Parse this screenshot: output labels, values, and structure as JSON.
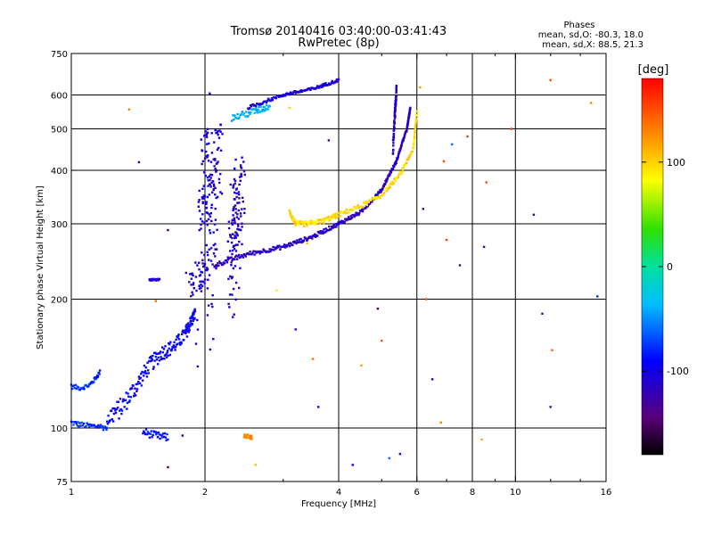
{
  "chart_data": {
    "type": "scatter",
    "title": "Tromsø 20140416 03:40:00-03:41:43",
    "subtitle": "RwPretec (8p)",
    "xlabel": "Frequency [MHz]",
    "ylabel": "Stationary phase Virtual Height [km]",
    "x_scale": "log",
    "y_scale": "log",
    "xlim": [
      1,
      16
    ],
    "ylim": [
      75,
      750
    ],
    "x_ticks": [
      1,
      2,
      4,
      6,
      8,
      10,
      16
    ],
    "x_tick_labels": [
      "1",
      "2",
      "4",
      "6",
      "8",
      "10",
      "16"
    ],
    "x_gridlines": [
      2,
      4,
      6,
      8,
      10
    ],
    "y_ticks": [
      75,
      100,
      200,
      300,
      400,
      500,
      600,
      750
    ],
    "y_tick_labels": [
      "75",
      "100",
      "200",
      "300",
      "400",
      "500",
      "600",
      "750"
    ],
    "y_gridlines": [
      100,
      200,
      300,
      400,
      500,
      600
    ],
    "grid": true,
    "stats": {
      "heading": "Phases",
      "line_o": "mean, sd,O: -80.3, 18.0",
      "line_x": "mean, sd,X:  88.5, 21.3"
    },
    "colorbar": {
      "unit": "[deg]",
      "range": [
        -180,
        180
      ],
      "ticks": [
        100,
        0,
        -100
      ],
      "tick_labels": [
        "100",
        "0",
        "-100"
      ]
    },
    "traces": [
      {
        "f": [
          1.0,
          1.04,
          1.1,
          1.15,
          1.2
        ],
        "h": [
          103,
          102,
          101,
          101,
          100
        ],
        "phase": -75,
        "spread": 1.5
      },
      {
        "f": [
          1.0,
          1.05,
          1.1,
          1.13,
          1.16
        ],
        "h": [
          125,
          124,
          126,
          130,
          135
        ],
        "phase": -80,
        "spread": 1.5
      },
      {
        "f": [
          1.2,
          1.3,
          1.4,
          1.5,
          1.6,
          1.7,
          1.8,
          1.85,
          1.9
        ],
        "h": [
          105,
          112,
          125,
          140,
          150,
          155,
          165,
          175,
          185
        ],
        "phase": -95,
        "spread": 6
      },
      {
        "f": [
          1.45,
          1.55,
          1.65
        ],
        "h": [
          98,
          96,
          95
        ],
        "phase": -90,
        "spread": 2
      },
      {
        "f": [
          1.5,
          1.58
        ],
        "h": [
          222,
          222
        ],
        "phase": -105,
        "spread": 1
      },
      {
        "f": [
          1.85,
          2.1
        ],
        "h": [
          215,
          250
        ],
        "phase": -110,
        "spread": 18,
        "fw": 0.025
      },
      {
        "f": [
          2.0,
          2.05,
          2.1
        ],
        "h": [
          210,
          400,
          440
        ],
        "phase": -105,
        "spread": 90,
        "fw": 0.05
      },
      {
        "f": [
          2.3,
          2.4
        ],
        "h": [
          220,
          390
        ],
        "phase": -110,
        "spread": 60,
        "fw": 0.03
      },
      {
        "f": [
          2.1,
          2.5,
          3.0,
          3.5,
          4.0,
          4.5,
          5.0,
          5.4,
          5.7,
          5.8
        ],
        "h": [
          240,
          255,
          265,
          280,
          300,
          320,
          360,
          420,
          500,
          560
        ],
        "phase": -115,
        "spread": 3
      },
      {
        "f": [
          3.1,
          3.2,
          3.4,
          3.7,
          4.0,
          4.5,
          5.0,
          5.5,
          5.9,
          6.0
        ],
        "h": [
          320,
          300,
          300,
          305,
          315,
          330,
          350,
          390,
          450,
          550
        ],
        "phase": 95,
        "spread": 4
      },
      {
        "f": [
          2.5,
          3.0,
          3.5,
          4.0
        ],
        "h": [
          560,
          600,
          620,
          650
        ],
        "phase": -105,
        "spread": 5
      },
      {
        "f": [
          2.3,
          2.6,
          2.8
        ],
        "h": [
          530,
          550,
          565
        ],
        "phase": -40,
        "spread": 10
      },
      {
        "f": [
          5.3,
          5.4
        ],
        "h": [
          450,
          620
        ],
        "phase": -115,
        "spread": 20
      },
      {
        "f": [
          2.45,
          2.55
        ],
        "h": [
          96,
          95
        ],
        "phase": 125,
        "spread": 1
      }
    ],
    "scatter_points": [
      {
        "f": 1.35,
        "h": 555,
        "phase": 130
      },
      {
        "f": 1.42,
        "h": 418,
        "phase": -120
      },
      {
        "f": 1.55,
        "h": 198,
        "phase": 140
      },
      {
        "f": 1.65,
        "h": 290,
        "phase": -90
      },
      {
        "f": 1.78,
        "h": 96,
        "phase": -95
      },
      {
        "f": 1.65,
        "h": 81,
        "phase": -150
      },
      {
        "f": 2.05,
        "h": 605,
        "phase": -100
      },
      {
        "f": 2.6,
        "h": 82,
        "phase": 110
      },
      {
        "f": 2.9,
        "h": 210,
        "phase": 90
      },
      {
        "f": 3.1,
        "h": 560,
        "phase": 100
      },
      {
        "f": 3.4,
        "h": 270,
        "phase": 110
      },
      {
        "f": 3.2,
        "h": 170,
        "phase": -110
      },
      {
        "f": 3.5,
        "h": 145,
        "phase": 140
      },
      {
        "f": 3.6,
        "h": 112,
        "phase": -120
      },
      {
        "f": 3.8,
        "h": 470,
        "phase": -130
      },
      {
        "f": 4.3,
        "h": 82,
        "phase": -100
      },
      {
        "f": 4.5,
        "h": 140,
        "phase": 120
      },
      {
        "f": 4.9,
        "h": 190,
        "phase": -140
      },
      {
        "f": 5.0,
        "h": 160,
        "phase": 150
      },
      {
        "f": 5.2,
        "h": 85,
        "phase": -60
      },
      {
        "f": 5.5,
        "h": 87,
        "phase": -100
      },
      {
        "f": 6.1,
        "h": 625,
        "phase": 120
      },
      {
        "f": 6.2,
        "h": 325,
        "phase": -130
      },
      {
        "f": 6.3,
        "h": 200,
        "phase": 150
      },
      {
        "f": 6.5,
        "h": 130,
        "phase": -110
      },
      {
        "f": 6.9,
        "h": 420,
        "phase": 150
      },
      {
        "f": 7.0,
        "h": 275,
        "phase": 160
      },
      {
        "f": 7.2,
        "h": 460,
        "phase": -60
      },
      {
        "f": 7.5,
        "h": 240,
        "phase": -130
      },
      {
        "f": 7.8,
        "h": 480,
        "phase": 160
      },
      {
        "f": 8.5,
        "h": 265,
        "phase": -120
      },
      {
        "f": 8.6,
        "h": 375,
        "phase": 150
      },
      {
        "f": 9.8,
        "h": 500,
        "phase": 160
      },
      {
        "f": 11.0,
        "h": 315,
        "phase": -130
      },
      {
        "f": 11.5,
        "h": 185,
        "phase": -140
      },
      {
        "f": 12.0,
        "h": 650,
        "phase": 150
      },
      {
        "f": 12.0,
        "h": 112,
        "phase": -120
      },
      {
        "f": 12.1,
        "h": 152,
        "phase": 140
      },
      {
        "f": 14.8,
        "h": 575,
        "phase": 130
      },
      {
        "f": 15.3,
        "h": 203,
        "phase": -80
      },
      {
        "f": 8.4,
        "h": 94,
        "phase": 120
      },
      {
        "f": 6.8,
        "h": 103,
        "phase": 130
      }
    ]
  }
}
